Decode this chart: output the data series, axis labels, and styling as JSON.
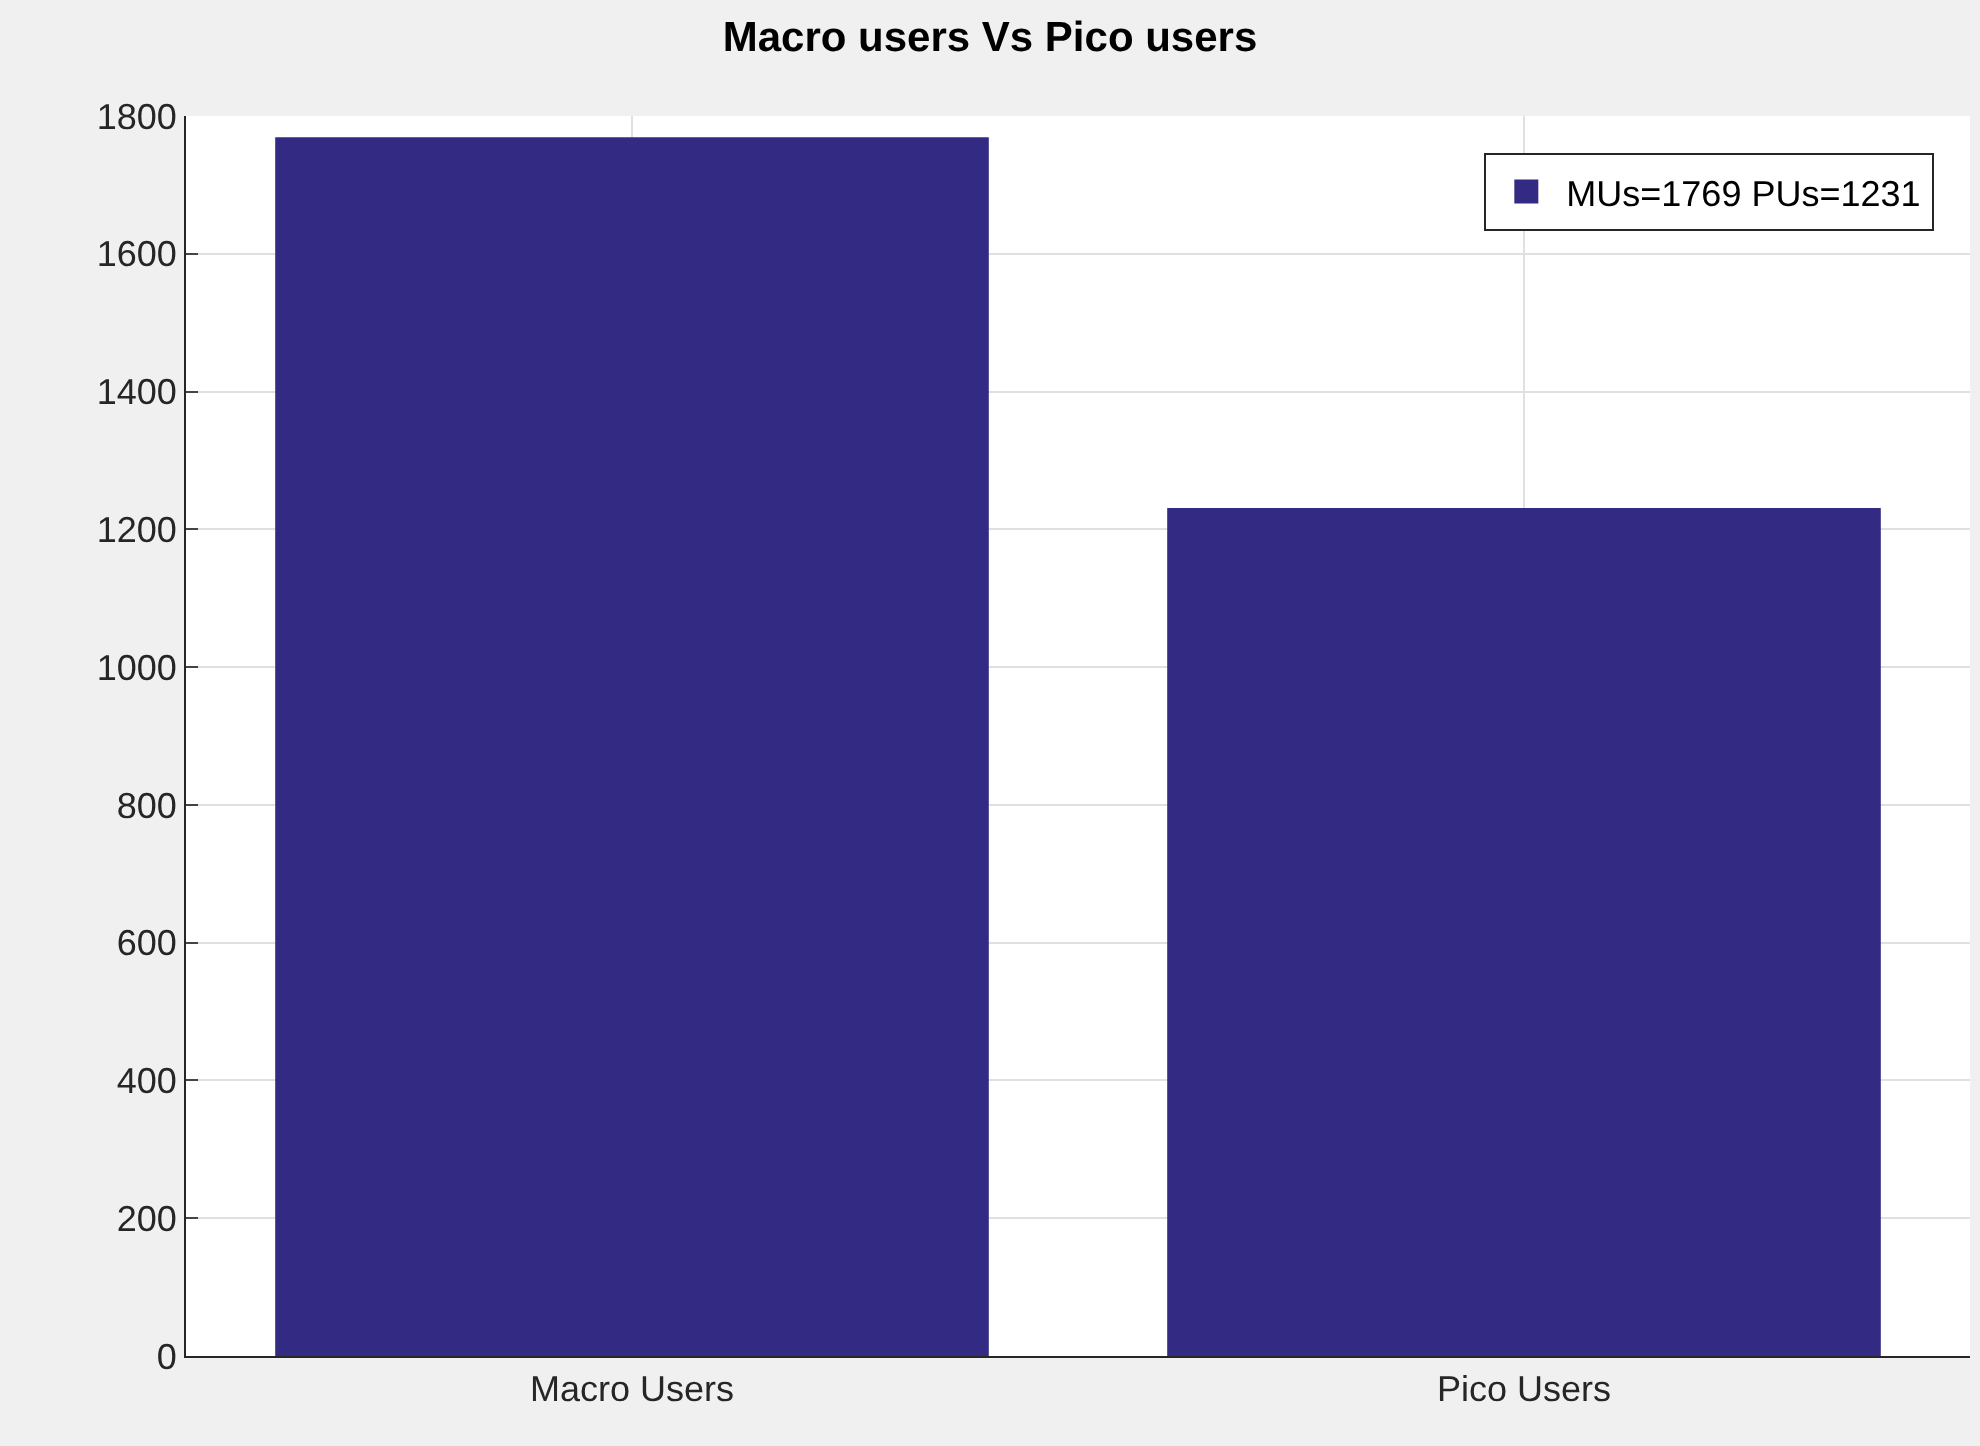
{
  "chart_data": {
    "type": "bar",
    "title": "Macro users Vs Pico users",
    "categories": [
      "Macro Users",
      "Pico Users"
    ],
    "series": [
      {
        "name": "MUs=1769 PUs=1231",
        "color": "#332a83",
        "values": [
          1769,
          1231
        ]
      }
    ],
    "ylim": [
      0,
      1800
    ],
    "yticks": [
      0,
      200,
      400,
      600,
      800,
      1000,
      1200,
      1400,
      1600,
      1800
    ],
    "grid": true,
    "legend": "top right"
  }
}
